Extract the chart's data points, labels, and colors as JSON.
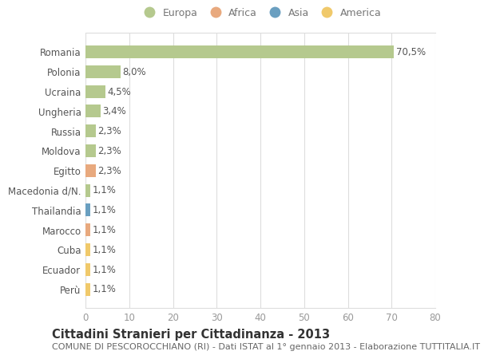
{
  "countries": [
    "Romania",
    "Polonia",
    "Ucraina",
    "Ungheria",
    "Russia",
    "Moldova",
    "Egitto",
    "Macedonia d/N.",
    "Thailandia",
    "Marocco",
    "Cuba",
    "Ecuador",
    "Perù"
  ],
  "values": [
    70.5,
    8.0,
    4.5,
    3.4,
    2.3,
    2.3,
    2.3,
    1.1,
    1.1,
    1.1,
    1.1,
    1.1,
    1.1
  ],
  "labels": [
    "70,5%",
    "8,0%",
    "4,5%",
    "3,4%",
    "2,3%",
    "2,3%",
    "2,3%",
    "1,1%",
    "1,1%",
    "1,1%",
    "1,1%",
    "1,1%",
    "1,1%"
  ],
  "continents": [
    "Europa",
    "Europa",
    "Europa",
    "Europa",
    "Europa",
    "Europa",
    "Africa",
    "Europa",
    "Asia",
    "Africa",
    "America",
    "America",
    "America"
  ],
  "colors": {
    "Europa": "#b5c98e",
    "Africa": "#e8a97e",
    "Asia": "#6a9fc0",
    "America": "#f0c96b"
  },
  "legend_order": [
    "Europa",
    "Africa",
    "Asia",
    "America"
  ],
  "legend_colors": [
    "#b5c98e",
    "#e8a97e",
    "#6a9fc0",
    "#f0c96b"
  ],
  "title": "Cittadini Stranieri per Cittadinanza - 2013",
  "subtitle": "COMUNE DI PESCOROCCHIANO (RI) - Dati ISTAT al 1° gennaio 2013 - Elaborazione TUTTITALIA.IT",
  "xlim": [
    0,
    80
  ],
  "xticks": [
    0,
    10,
    20,
    30,
    40,
    50,
    60,
    70,
    80
  ],
  "bg_color": "#ffffff",
  "grid_color": "#dddddd",
  "bar_height": 0.65,
  "label_fontsize": 8.5,
  "tick_fontsize": 8.5,
  "title_fontsize": 10.5,
  "subtitle_fontsize": 8.0
}
